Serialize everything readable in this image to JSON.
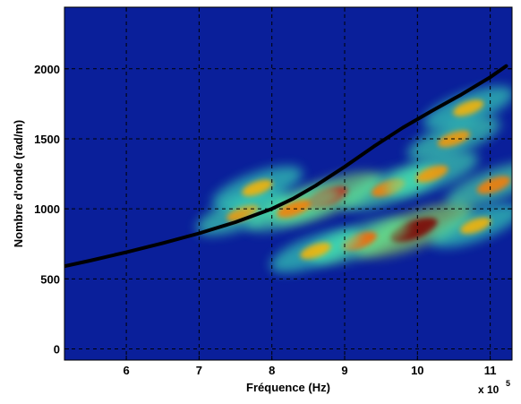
{
  "chart_data": {
    "type": "heatmap",
    "title": "",
    "xlabel": "Fréquence (Hz)",
    "ylabel": "Nombre d'onde (rad/m)",
    "x_multiplier": "x 10",
    "x_multiplier_exponent": "5",
    "xlim": [
      5.15,
      11.3
    ],
    "ylim": [
      -80,
      2440
    ],
    "grid": true,
    "colormap": "jet",
    "background_color": "#0a1f9a",
    "x_ticks": [
      6,
      7,
      8,
      9,
      10,
      11
    ],
    "x_tick_labels": [
      "6",
      "7",
      "8",
      "9",
      "10",
      "11"
    ],
    "y_ticks": [
      0,
      500,
      1000,
      1500,
      2000
    ],
    "y_tick_labels": [
      "0",
      "500",
      "1000",
      "1500",
      "2000"
    ],
    "dispersion_curve": {
      "color": "#000000",
      "points": [
        [
          5.15,
          590
        ],
        [
          5.5,
          630
        ],
        [
          6.0,
          690
        ],
        [
          6.5,
          755
        ],
        [
          7.0,
          825
        ],
        [
          7.5,
          905
        ],
        [
          8.0,
          1000
        ],
        [
          8.3,
          1075
        ],
        [
          8.6,
          1165
        ],
        [
          9.0,
          1300
        ],
        [
          9.4,
          1445
        ],
        [
          9.8,
          1580
        ],
        [
          10.2,
          1700
        ],
        [
          10.6,
          1815
        ],
        [
          11.0,
          1940
        ],
        [
          11.22,
          2020
        ]
      ]
    },
    "energy_regions": [
      {
        "x": 8.75,
        "y": 1080,
        "intensity": 0.85
      },
      {
        "x": 9.6,
        "y": 1150,
        "intensity": 0.55
      },
      {
        "x": 10.5,
        "y": 1500,
        "intensity": 0.5
      },
      {
        "x": 10.7,
        "y": 1720,
        "intensity": 0.45
      },
      {
        "x": 9.95,
        "y": 850,
        "intensity": 1.0
      },
      {
        "x": 9.2,
        "y": 770,
        "intensity": 0.6
      },
      {
        "x": 8.6,
        "y": 700,
        "intensity": 0.45
      },
      {
        "x": 11.05,
        "y": 1170,
        "intensity": 0.55
      },
      {
        "x": 10.8,
        "y": 880,
        "intensity": 0.45
      },
      {
        "x": 7.6,
        "y": 970,
        "intensity": 0.5
      },
      {
        "x": 7.8,
        "y": 1150,
        "intensity": 0.45
      },
      {
        "x": 8.3,
        "y": 1000,
        "intensity": 0.55
      },
      {
        "x": 10.2,
        "y": 1250,
        "intensity": 0.5
      }
    ]
  }
}
